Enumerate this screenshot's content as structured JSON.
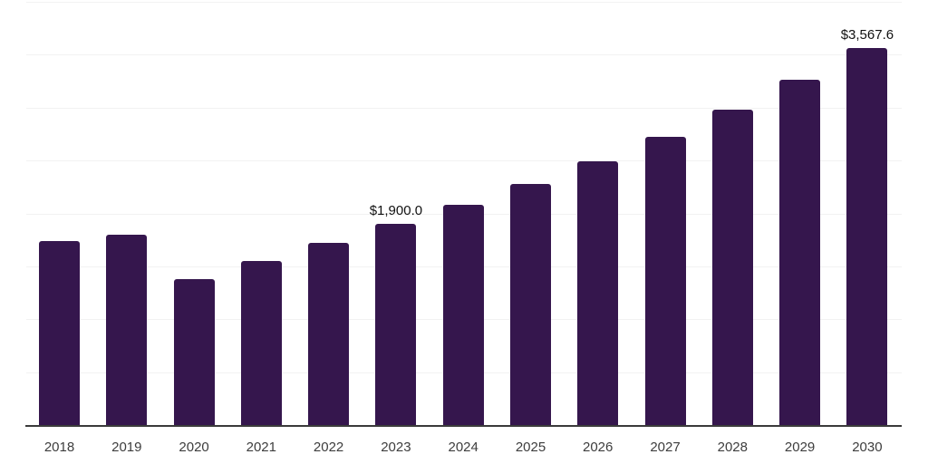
{
  "chart_data": {
    "type": "bar",
    "title": "",
    "xlabel": "",
    "ylabel": "",
    "categories": [
      "2018",
      "2019",
      "2020",
      "2021",
      "2022",
      "2023",
      "2024",
      "2025",
      "2026",
      "2027",
      "2028",
      "2029",
      "2030"
    ],
    "values": [
      1740,
      1800,
      1380,
      1550,
      1720,
      1900.0,
      2080,
      2275,
      2490,
      2725,
      2980,
      3260,
      3567.6
    ],
    "point_labels": [
      "",
      "",
      "",
      "",
      "",
      "$1,900.0",
      "",
      "",
      "",
      "",
      "",
      "",
      "$3,567.6"
    ],
    "ylim": [
      0,
      4000
    ],
    "ytick_step": 500,
    "ytick_labels_visible": false,
    "grid": true,
    "legend_position": "none",
    "colors": {
      "bar": "#35164d",
      "gridline": "#f2f2f2",
      "axis": "#3b3b3b",
      "tick_label": "#3d3d3d",
      "value_label": "#111111",
      "background": "#ffffff"
    }
  }
}
